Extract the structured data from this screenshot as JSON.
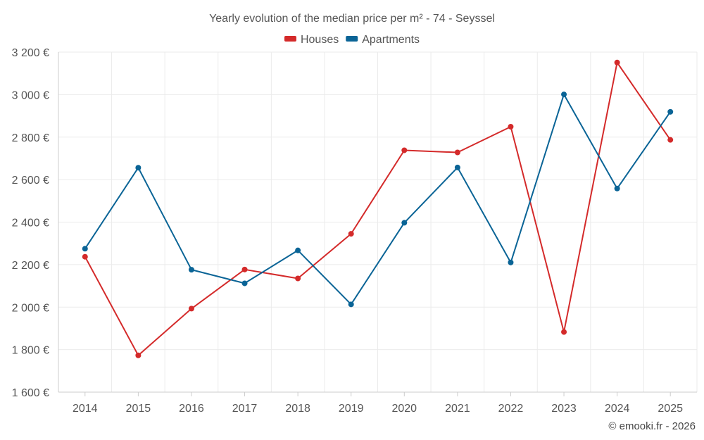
{
  "chart_data": {
    "type": "line",
    "title": "Yearly evolution of the median price per m² - 74 - Seyssel",
    "categories": [
      "2014",
      "2015",
      "2016",
      "2017",
      "2018",
      "2019",
      "2020",
      "2021",
      "2022",
      "2023",
      "2024",
      "2025"
    ],
    "series": [
      {
        "name": "Houses",
        "color": "#d42a2a",
        "values": [
          2237,
          1773,
          1993,
          2177,
          2135,
          2345,
          2738,
          2728,
          2849,
          1883,
          3151,
          2787
        ]
      },
      {
        "name": "Apartments",
        "color": "#0a6496",
        "values": [
          2275,
          2656,
          2176,
          2112,
          2267,
          2013,
          2397,
          2657,
          2210,
          3001,
          2558,
          2919
        ]
      }
    ],
    "ylim": [
      1600,
      3200
    ],
    "yticks": [
      1600,
      1800,
      2000,
      2200,
      2400,
      2600,
      2800,
      3000,
      3200
    ],
    "ytick_labels": [
      "1 600 €",
      "1 800 €",
      "2 000 €",
      "2 200 €",
      "2 400 €",
      "2 600 €",
      "2 800 €",
      "3 000 €",
      "3 200 €"
    ],
    "legend_position": "top-center",
    "grid": true
  },
  "credit": "© emooki.fr - 2026"
}
